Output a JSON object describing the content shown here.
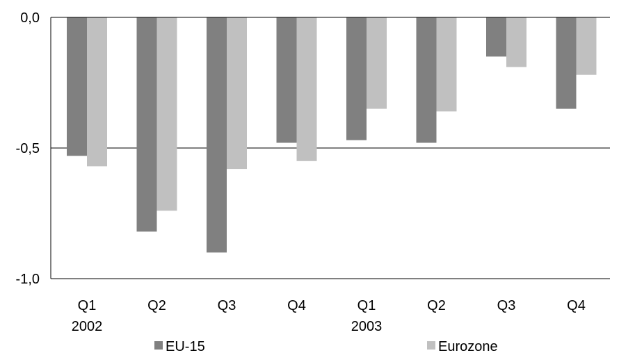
{
  "chart_data": {
    "type": "bar",
    "categories": [
      {
        "quarter": "Q1",
        "year": "2002"
      },
      {
        "quarter": "Q2",
        "year": ""
      },
      {
        "quarter": "Q3",
        "year": ""
      },
      {
        "quarter": "Q4",
        "year": ""
      },
      {
        "quarter": "Q1",
        "year": "2003"
      },
      {
        "quarter": "Q2",
        "year": ""
      },
      {
        "quarter": "Q3",
        "year": ""
      },
      {
        "quarter": "Q4",
        "year": ""
      }
    ],
    "series": [
      {
        "name": "EU-15",
        "color": "#808080",
        "values": [
          -0.53,
          -0.82,
          -0.9,
          -0.48,
          -0.47,
          -0.48,
          -0.15,
          -0.35
        ]
      },
      {
        "name": "Eurozone",
        "color": "#c0c0c0",
        "values": [
          -0.57,
          -0.74,
          -0.58,
          -0.55,
          -0.35,
          -0.36,
          -0.19,
          -0.22
        ]
      }
    ],
    "ylim": [
      -1.0,
      0.0
    ],
    "yticks": [
      {
        "value": 0.0,
        "label": "0,0"
      },
      {
        "value": -0.5,
        "label": "-0,5"
      },
      {
        "value": -1.0,
        "label": "-1,0"
      }
    ],
    "gridlines": true,
    "legend_position": "bottom",
    "title": "",
    "xlabel": "",
    "ylabel": ""
  }
}
